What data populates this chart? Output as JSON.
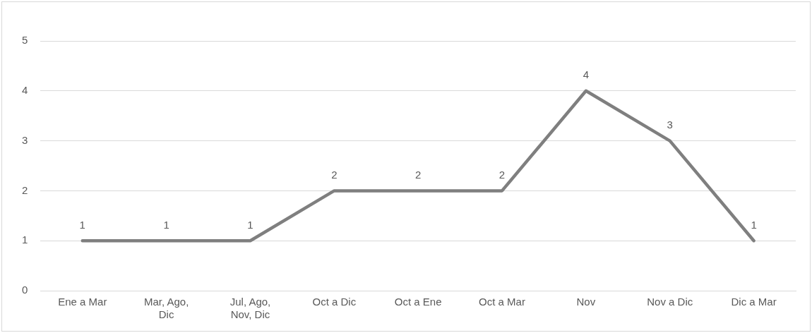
{
  "chart_data": {
    "type": "line",
    "categories": [
      "Ene a Mar",
      "Mar, Ago, Dic",
      "Jul, Ago, Nov, Dic",
      "Oct a Dic",
      "Oct a Ene",
      "Oct a Mar",
      "Nov",
      "Nov a Dic",
      "Dic a Mar"
    ],
    "series": [
      {
        "color": "#7f7f7f",
        "values": [
          1,
          1,
          1,
          2,
          2,
          2,
          4,
          3,
          1
        ]
      }
    ],
    "ylim": [
      0,
      5
    ],
    "yticks": [
      0,
      1,
      2,
      3,
      4,
      5
    ],
    "grid": "y",
    "legend": false,
    "marker": "none",
    "line_style": "solid",
    "data_labels": true
  }
}
